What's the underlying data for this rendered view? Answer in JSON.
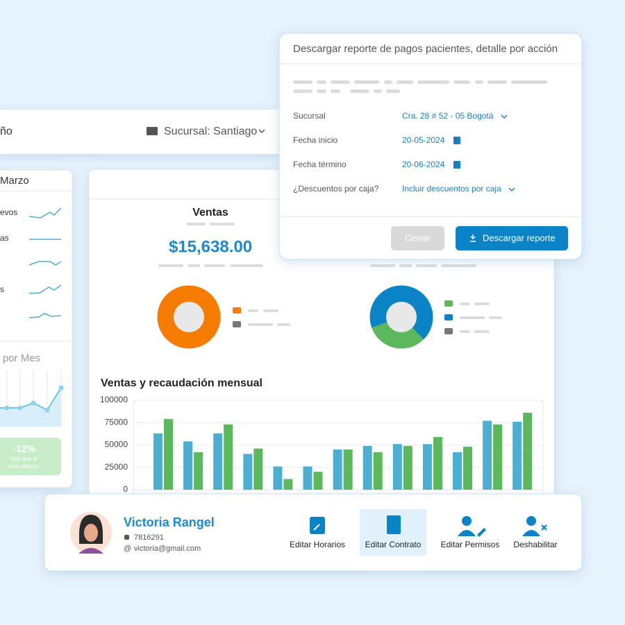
{
  "dashboard": {
    "header_title": "ño",
    "branch": "Sucursal: Santiago"
  },
  "side_panel": {
    "month": "Marzo",
    "rows": [
      "evos",
      "as",
      "s"
    ],
    "chart_title": "por Mes",
    "change": "↑12%",
    "change_note": [
      "más que el",
      "mes anterior"
    ]
  },
  "sales": {
    "title": "Ventas",
    "amount": "$15,638.00"
  },
  "modal": {
    "title": "Descargar reporte de pagos pacientes, detalle por acción",
    "fields": [
      {
        "label": "Sucursal",
        "value": "Cra. 28 # 52 - 05 Bogotá"
      },
      {
        "label": "Fecha inicio",
        "value": "20-05-2024"
      },
      {
        "label": "Fecha término",
        "value": "20-06-2024"
      },
      {
        "label": "¿Descuentos por caja?",
        "value": "Incluir descuentos por caja"
      }
    ],
    "buttons": [
      "Cerrar",
      "Descargar reporte"
    ]
  },
  "profile": {
    "name": "Victoria Rangel",
    "phone": "7816291",
    "email": "victoria@gmail.com",
    "actions": [
      "Editar Horarios",
      "Editar Contrato",
      "Editar Permisos",
      "Deshabilitar"
    ]
  },
  "chart_data": [
    {
      "type": "pie",
      "values": [
        100
      ],
      "colors": [
        "#f57c00"
      ]
    },
    {
      "type": "pie",
      "values": [
        68,
        32
      ],
      "colors": [
        "#0a84c6",
        "#5cb85c"
      ]
    },
    {
      "type": "bar",
      "title": "Ventas y recaudación mensual",
      "series": [
        {
          "color": "#4aafd1",
          "values": [
            63000,
            54000,
            63000,
            40000,
            26000,
            26000,
            45000,
            49000,
            51000,
            51000,
            42000,
            77000,
            76000
          ]
        },
        {
          "color": "#5cb85c",
          "values": [
            79000,
            42000,
            73000,
            46000,
            12000,
            20000,
            45000,
            42000,
            49000,
            59000,
            48000,
            73000,
            86000
          ]
        }
      ],
      "ylim": [
        0,
        100000
      ],
      "yticks": [
        0,
        25000,
        50000,
        75000,
        100000
      ],
      "grid": true
    }
  ]
}
